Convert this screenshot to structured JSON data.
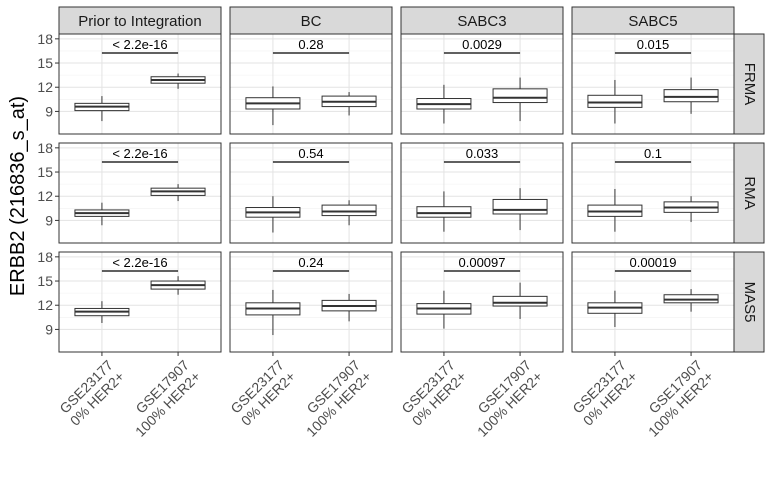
{
  "chart_data": {
    "type": "boxplot",
    "ylabel": "ERBB2 (216836_s_at)",
    "yticks": [
      9,
      12,
      15,
      18
    ],
    "ylim": [
      6.2,
      18.6
    ],
    "grid": true,
    "columns": [
      "Prior to Integration",
      "BC",
      "SABC3",
      "SABC5"
    ],
    "rows": [
      "FRMA",
      "RMA",
      "MAS5"
    ],
    "categories": [
      [
        "GSE23177",
        "0% HER2+"
      ],
      [
        "GSE17907",
        "100% HER2+"
      ]
    ],
    "panels": [
      [
        {
          "pvalue": "< 2.2e-16",
          "boxes": [
            {
              "min": 7.8,
              "q1": 9.1,
              "median": 9.6,
              "q3": 10.0,
              "max": 10.9
            },
            {
              "min": 11.8,
              "q1": 12.5,
              "median": 12.9,
              "q3": 13.3,
              "max": 13.7
            }
          ]
        },
        {
          "pvalue": "0.28",
          "boxes": [
            {
              "min": 7.3,
              "q1": 9.3,
              "median": 10.0,
              "q3": 10.7,
              "max": 12.1
            },
            {
              "min": 8.5,
              "q1": 9.6,
              "median": 10.2,
              "q3": 10.9,
              "max": 11.4
            }
          ]
        },
        {
          "pvalue": "0.0029",
          "boxes": [
            {
              "min": 7.5,
              "q1": 9.3,
              "median": 9.9,
              "q3": 10.6,
              "max": 12.3
            },
            {
              "min": 7.8,
              "q1": 10.1,
              "median": 10.7,
              "q3": 11.8,
              "max": 13.2
            }
          ]
        },
        {
          "pvalue": "0.015",
          "boxes": [
            {
              "min": 7.5,
              "q1": 9.5,
              "median": 10.1,
              "q3": 11.0,
              "max": 12.9
            },
            {
              "min": 8.7,
              "q1": 10.2,
              "median": 10.8,
              "q3": 11.7,
              "max": 13.2
            }
          ]
        }
      ],
      [
        {
          "pvalue": "< 2.2e-16",
          "boxes": [
            {
              "min": 8.4,
              "q1": 9.5,
              "median": 9.9,
              "q3": 10.3,
              "max": 11.2
            },
            {
              "min": 11.4,
              "q1": 12.1,
              "median": 12.6,
              "q3": 13.0,
              "max": 13.5
            }
          ]
        },
        {
          "pvalue": "0.54",
          "boxes": [
            {
              "min": 7.5,
              "q1": 9.4,
              "median": 10.0,
              "q3": 10.6,
              "max": 12.0
            },
            {
              "min": 8.4,
              "q1": 9.6,
              "median": 10.1,
              "q3": 10.9,
              "max": 11.5
            }
          ]
        },
        {
          "pvalue": "0.033",
          "boxes": [
            {
              "min": 7.6,
              "q1": 9.4,
              "median": 9.9,
              "q3": 10.7,
              "max": 12.6
            },
            {
              "min": 7.8,
              "q1": 9.8,
              "median": 10.3,
              "q3": 11.6,
              "max": 13.0
            }
          ]
        },
        {
          "pvalue": "0.1",
          "boxes": [
            {
              "min": 7.6,
              "q1": 9.5,
              "median": 10.1,
              "q3": 10.9,
              "max": 12.9
            },
            {
              "min": 8.8,
              "q1": 10.0,
              "median": 10.6,
              "q3": 11.3,
              "max": 12.0
            }
          ]
        }
      ],
      [
        {
          "pvalue": "< 2.2e-16",
          "boxes": [
            {
              "min": 9.8,
              "q1": 10.7,
              "median": 11.2,
              "q3": 11.6,
              "max": 12.5
            },
            {
              "min": 13.3,
              "q1": 14.0,
              "median": 14.5,
              "q3": 15.0,
              "max": 15.6
            }
          ]
        },
        {
          "pvalue": "0.24",
          "boxes": [
            {
              "min": 8.3,
              "q1": 10.8,
              "median": 11.6,
              "q3": 12.3,
              "max": 13.9
            },
            {
              "min": 10.0,
              "q1": 11.3,
              "median": 11.9,
              "q3": 12.6,
              "max": 13.4
            }
          ]
        },
        {
          "pvalue": "0.00097",
          "boxes": [
            {
              "min": 9.1,
              "q1": 10.9,
              "median": 11.6,
              "q3": 12.2,
              "max": 13.8
            },
            {
              "min": 10.3,
              "q1": 11.9,
              "median": 12.3,
              "q3": 13.1,
              "max": 14.8
            }
          ]
        },
        {
          "pvalue": "0.00019",
          "boxes": [
            {
              "min": 9.3,
              "q1": 11.0,
              "median": 11.7,
              "q3": 12.3,
              "max": 13.8
            },
            {
              "min": 11.2,
              "q1": 12.3,
              "median": 12.7,
              "q3": 13.3,
              "max": 14.0
            }
          ]
        }
      ]
    ]
  }
}
